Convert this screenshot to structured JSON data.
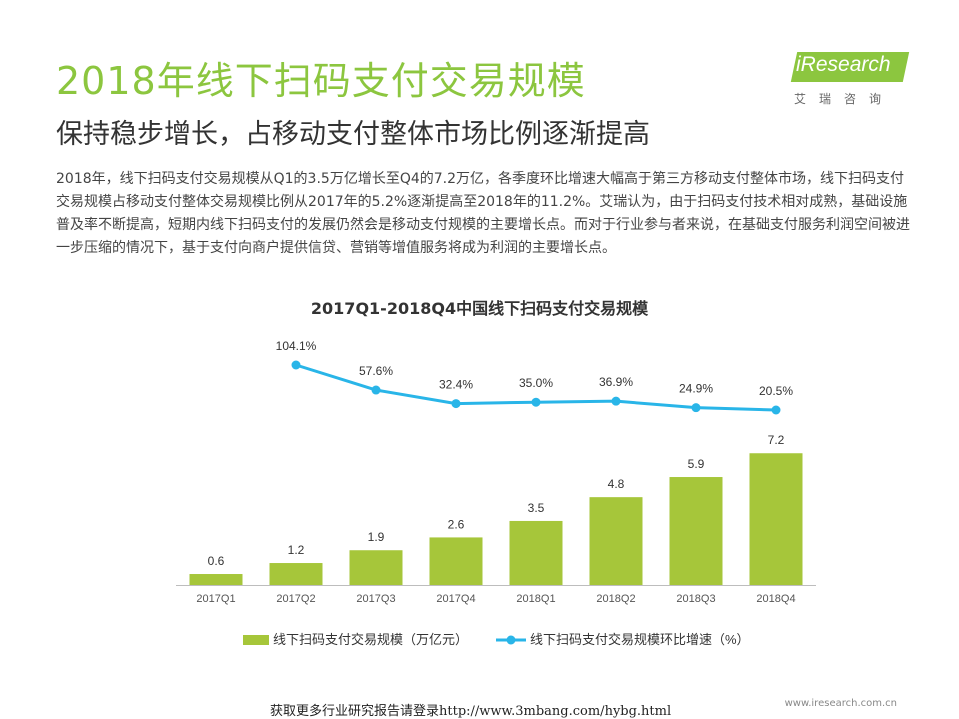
{
  "header": {
    "title": "2018年线下扫码支付交易规模",
    "subtitle": "保持稳步增长，占移动支付整体市场比例逐渐提高"
  },
  "logo": {
    "name": "iResearch",
    "sub": "艾瑞咨询"
  },
  "body": {
    "paragraph": "2018年，线下扫码支付交易规模从Q1的3.5万亿增长至Q4的7.2万亿，各季度环比增速大幅高于第三方移动支付整体市场，线下扫码支付交易规模占移动支付整体交易规模比例从2017年的5.2%逐渐提高至2018年的11.2%。艾瑞认为，由于扫码支付技术相对成熟，基础设施普及率不断提高，短期内线下扫码支付的发展仍然会是移动支付规模的主要增长点。而对于行业参与者来说，在基础支付服务利润空间被进一步压缩的情况下，基于支付向商户提供信贷、营销等增值服务将成为利润的主要增长点。"
  },
  "footer": {
    "text": "获取更多行业研究报告请登录http://www.3mbang.com/hybg.html",
    "site": "www.iresearch.com.cn"
  },
  "chart_data": {
    "type": "bar",
    "title": "2017Q1-2018Q4中国线下扫码支付交易规模",
    "categories": [
      "2017Q1",
      "2017Q2",
      "2017Q3",
      "2017Q4",
      "2018Q1",
      "2018Q2",
      "2018Q3",
      "2018Q4"
    ],
    "series": [
      {
        "name": "线下扫码支付交易规模（万亿元）",
        "type": "bar",
        "values": [
          0.6,
          1.2,
          1.9,
          2.6,
          3.5,
          4.8,
          5.9,
          7.2
        ],
        "labels": [
          "0.6",
          "1.2",
          "1.9",
          "2.6",
          "3.5",
          "4.8",
          "5.9",
          "7.2"
        ],
        "color": "#a6c63a"
      },
      {
        "name": "线下扫码支付交易规模环比增速（%）",
        "type": "line",
        "x": [
          "2017Q2",
          "2017Q3",
          "2017Q4",
          "2018Q1",
          "2018Q2",
          "2018Q3",
          "2018Q4"
        ],
        "values": [
          104.1,
          57.6,
          32.4,
          35.0,
          36.9,
          24.9,
          20.5
        ],
        "labels": [
          "104.1%",
          "57.6%",
          "32.4%",
          "35.0%",
          "36.9%",
          "24.9%",
          "20.5%"
        ],
        "color": "#29b5e8"
      }
    ],
    "xlabel": "",
    "ylabel": "",
    "grid": false,
    "legend": "bottom"
  }
}
